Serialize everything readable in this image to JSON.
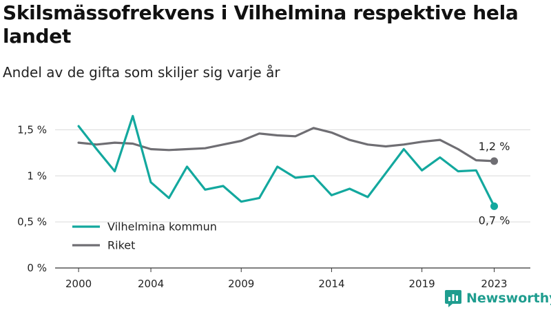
{
  "header": {
    "title": "Skilsmässofrekvens i Vilhelmina respektive hela landet",
    "subtitle": "Andel av de gifta som skiljer sig varje år"
  },
  "brand": {
    "name": "Newsworthy",
    "color": "#1f9d8f"
  },
  "chart_data": {
    "type": "line",
    "title": "Skilsmässofrekvens i Vilhelmina respektive hela landet",
    "subtitle": "Andel av de gifta som skiljer sig varje år",
    "xlabel": "",
    "ylabel": "",
    "x": [
      2000,
      2001,
      2002,
      2003,
      2004,
      2005,
      2006,
      2007,
      2008,
      2009,
      2010,
      2011,
      2012,
      2013,
      2014,
      2015,
      2016,
      2017,
      2018,
      2019,
      2020,
      2021,
      2022,
      2023
    ],
    "x_ticks": [
      2000,
      2004,
      2009,
      2014,
      2019,
      2023
    ],
    "x_tick_labels": [
      "2000",
      "2004",
      "2009",
      "2014",
      "2019",
      "2023"
    ],
    "ylim": [
      0,
      1.75
    ],
    "y_ticks": [
      0,
      0.5,
      1,
      1.5
    ],
    "y_tick_labels": [
      "0 %",
      "0,5 %",
      "1 %",
      "1,5 %"
    ],
    "grid": true,
    "legend_position": "bottom-left",
    "series": [
      {
        "name": "Vilhelmina kommun",
        "color": "#13a89e",
        "values": [
          1.54,
          1.29,
          1.05,
          1.65,
          0.93,
          0.76,
          1.1,
          0.85,
          0.89,
          0.72,
          0.76,
          1.1,
          0.98,
          1.0,
          0.79,
          0.86,
          0.77,
          1.03,
          1.29,
          1.06,
          1.2,
          1.05,
          1.06,
          0.67
        ],
        "end_label": "0,7 %"
      },
      {
        "name": "Riket",
        "color": "#6f6e73",
        "values": [
          1.36,
          1.34,
          1.36,
          1.35,
          1.29,
          1.28,
          1.29,
          1.3,
          1.34,
          1.38,
          1.46,
          1.44,
          1.43,
          1.52,
          1.47,
          1.39,
          1.34,
          1.32,
          1.34,
          1.37,
          1.39,
          1.29,
          1.17,
          1.16
        ],
        "end_label": "1,2 %"
      }
    ]
  }
}
